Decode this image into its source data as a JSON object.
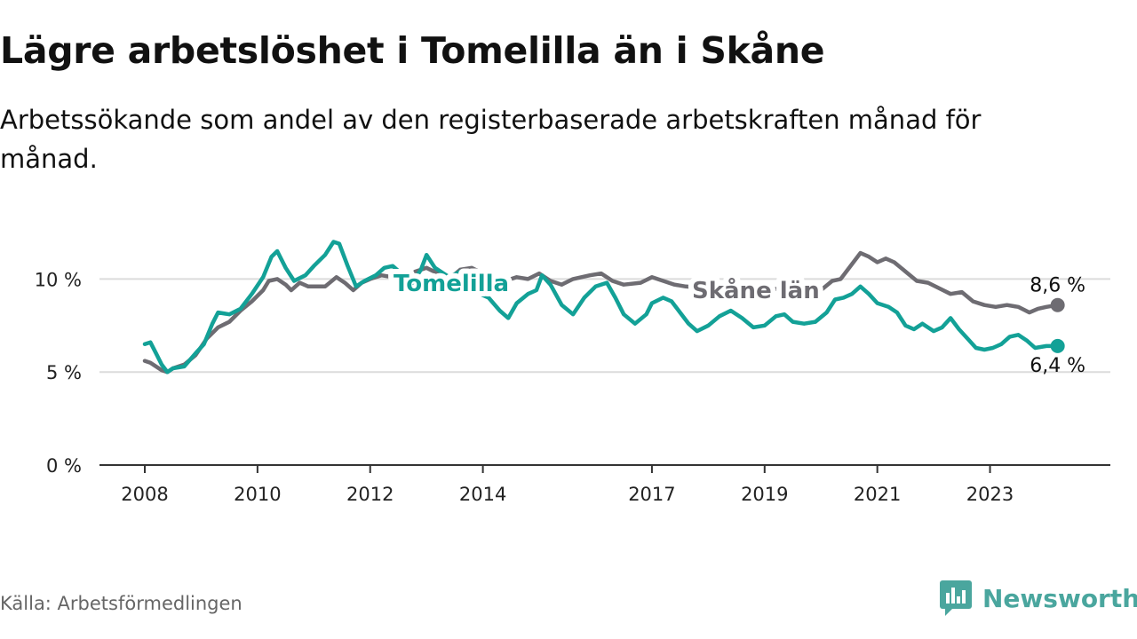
{
  "header": {
    "title": "Lägre arbetslöshet i Tomelilla än i Skåne",
    "subtitle": "Arbetssökande som andel av den registerbaserade arbetskraften månad för månad."
  },
  "footer": {
    "source": "Källa: Arbetsförmedlingen",
    "brand": "Newsworthy",
    "brand_color": "#4aa69e",
    "brand_icon": "bar-chart-speech-bubble-icon"
  },
  "chart_data": {
    "type": "line",
    "title": "Lägre arbetslöshet i Tomelilla än i Skåne",
    "subtitle": "Arbetssökande som andel av den registerbaserade arbetskraften månad för månad.",
    "xlabel": "",
    "ylabel": "",
    "xlim": [
      2008.0,
      2024.3
    ],
    "ylim": [
      0,
      12.5
    ],
    "grid": true,
    "x_ticks": [
      {
        "value": 2008,
        "label": "2008"
      },
      {
        "value": 2010,
        "label": "2010"
      },
      {
        "value": 2012,
        "label": "2012"
      },
      {
        "value": 2014,
        "label": "2014"
      },
      {
        "value": 2017,
        "label": "2017"
      },
      {
        "value": 2019,
        "label": "2019"
      },
      {
        "value": 2021,
        "label": "2021"
      },
      {
        "value": 2023,
        "label": "2023"
      }
    ],
    "y_ticks": [
      {
        "value": 0,
        "label": "0 %"
      },
      {
        "value": 5,
        "label": "5 %"
      },
      {
        "value": 10,
        "label": "10 %"
      }
    ],
    "series": [
      {
        "name": "Skåne län",
        "color": "#6e6c72",
        "end_label": "8,6 %",
        "points": [
          [
            2008.0,
            5.6
          ],
          [
            2008.1,
            5.5
          ],
          [
            2008.3,
            5.1
          ],
          [
            2008.4,
            5.0
          ],
          [
            2008.5,
            5.2
          ],
          [
            2008.7,
            5.4
          ],
          [
            2008.9,
            5.9
          ],
          [
            2009.1,
            6.8
          ],
          [
            2009.3,
            7.4
          ],
          [
            2009.5,
            7.7
          ],
          [
            2009.7,
            8.3
          ],
          [
            2009.9,
            8.8
          ],
          [
            2010.1,
            9.4
          ],
          [
            2010.2,
            9.9
          ],
          [
            2010.35,
            10.0
          ],
          [
            2010.5,
            9.7
          ],
          [
            2010.6,
            9.4
          ],
          [
            2010.75,
            9.8
          ],
          [
            2010.9,
            9.6
          ],
          [
            2011.2,
            9.6
          ],
          [
            2011.4,
            10.1
          ],
          [
            2011.55,
            9.8
          ],
          [
            2011.7,
            9.4
          ],
          [
            2011.85,
            9.8
          ],
          [
            2012.0,
            10.0
          ],
          [
            2012.2,
            10.2
          ],
          [
            2012.4,
            10.1
          ],
          [
            2012.6,
            9.9
          ],
          [
            2012.8,
            10.4
          ],
          [
            2013.0,
            10.6
          ],
          [
            2013.2,
            10.3
          ],
          [
            2013.4,
            10.0
          ],
          [
            2013.6,
            10.5
          ],
          [
            2013.8,
            10.6
          ],
          [
            2014.0,
            10.3
          ],
          [
            2014.2,
            9.9
          ],
          [
            2014.4,
            9.9
          ],
          [
            2014.6,
            10.1
          ],
          [
            2014.8,
            10.0
          ],
          [
            2015.0,
            10.3
          ],
          [
            2015.2,
            9.9
          ],
          [
            2015.4,
            9.7
          ],
          [
            2015.6,
            10.0
          ],
          [
            2015.9,
            10.2
          ],
          [
            2016.1,
            10.3
          ],
          [
            2016.3,
            9.9
          ],
          [
            2016.5,
            9.7
          ],
          [
            2016.8,
            9.8
          ],
          [
            2017.0,
            10.1
          ],
          [
            2017.2,
            9.9
          ],
          [
            2017.4,
            9.7
          ],
          [
            2017.6,
            9.6
          ],
          [
            2018.0,
            9.5
          ],
          [
            2018.3,
            9.6
          ],
          [
            2018.6,
            9.5
          ],
          [
            2019.0,
            9.4
          ],
          [
            2019.3,
            9.5
          ],
          [
            2019.6,
            9.3
          ],
          [
            2019.8,
            9.2
          ],
          [
            2020.0,
            9.4
          ],
          [
            2020.2,
            9.9
          ],
          [
            2020.35,
            10.0
          ],
          [
            2020.55,
            10.8
          ],
          [
            2020.7,
            11.4
          ],
          [
            2020.85,
            11.2
          ],
          [
            2021.0,
            10.9
          ],
          [
            2021.15,
            11.1
          ],
          [
            2021.3,
            10.9
          ],
          [
            2021.5,
            10.4
          ],
          [
            2021.7,
            9.9
          ],
          [
            2021.9,
            9.8
          ],
          [
            2022.1,
            9.5
          ],
          [
            2022.3,
            9.2
          ],
          [
            2022.5,
            9.3
          ],
          [
            2022.7,
            8.8
          ],
          [
            2022.9,
            8.6
          ],
          [
            2023.1,
            8.5
          ],
          [
            2023.3,
            8.6
          ],
          [
            2023.5,
            8.5
          ],
          [
            2023.7,
            8.2
          ],
          [
            2023.85,
            8.4
          ],
          [
            2024.0,
            8.5
          ],
          [
            2024.2,
            8.6
          ]
        ]
      },
      {
        "name": "Tomelilla",
        "color": "#13a197",
        "end_label": "6,4 %",
        "points": [
          [
            2008.0,
            6.5
          ],
          [
            2008.1,
            6.6
          ],
          [
            2008.2,
            6.0
          ],
          [
            2008.3,
            5.4
          ],
          [
            2008.4,
            5.0
          ],
          [
            2008.5,
            5.2
          ],
          [
            2008.7,
            5.3
          ],
          [
            2008.9,
            6.0
          ],
          [
            2009.05,
            6.5
          ],
          [
            2009.2,
            7.6
          ],
          [
            2009.3,
            8.2
          ],
          [
            2009.5,
            8.1
          ],
          [
            2009.7,
            8.4
          ],
          [
            2009.9,
            9.2
          ],
          [
            2010.1,
            10.1
          ],
          [
            2010.25,
            11.2
          ],
          [
            2010.35,
            11.5
          ],
          [
            2010.5,
            10.6
          ],
          [
            2010.65,
            9.9
          ],
          [
            2010.85,
            10.2
          ],
          [
            2011.0,
            10.7
          ],
          [
            2011.2,
            11.3
          ],
          [
            2011.35,
            12.0
          ],
          [
            2011.45,
            11.9
          ],
          [
            2011.6,
            10.7
          ],
          [
            2011.75,
            9.6
          ],
          [
            2011.9,
            9.9
          ],
          [
            2012.1,
            10.2
          ],
          [
            2012.25,
            10.6
          ],
          [
            2012.4,
            10.7
          ],
          [
            2012.55,
            10.3
          ],
          [
            2012.75,
            9.8
          ],
          [
            2012.9,
            10.5
          ],
          [
            2013.0,
            11.3
          ],
          [
            2013.15,
            10.6
          ],
          [
            2013.4,
            10.1
          ],
          [
            2013.6,
            10.4
          ],
          [
            2013.8,
            9.4
          ],
          [
            2014.1,
            9.0
          ],
          [
            2014.3,
            8.3
          ],
          [
            2014.45,
            7.9
          ],
          [
            2014.6,
            8.7
          ],
          [
            2014.8,
            9.2
          ],
          [
            2014.95,
            9.4
          ],
          [
            2015.05,
            10.2
          ],
          [
            2015.2,
            9.7
          ],
          [
            2015.4,
            8.6
          ],
          [
            2015.6,
            8.1
          ],
          [
            2015.8,
            9.0
          ],
          [
            2016.0,
            9.6
          ],
          [
            2016.2,
            9.8
          ],
          [
            2016.35,
            9.0
          ],
          [
            2016.5,
            8.1
          ],
          [
            2016.7,
            7.6
          ],
          [
            2016.9,
            8.1
          ],
          [
            2017.0,
            8.7
          ],
          [
            2017.2,
            9.0
          ],
          [
            2017.35,
            8.8
          ],
          [
            2017.5,
            8.2
          ],
          [
            2017.65,
            7.6
          ],
          [
            2017.8,
            7.2
          ],
          [
            2018.0,
            7.5
          ],
          [
            2018.2,
            8.0
          ],
          [
            2018.4,
            8.3
          ],
          [
            2018.6,
            7.9
          ],
          [
            2018.8,
            7.4
          ],
          [
            2019.0,
            7.5
          ],
          [
            2019.2,
            8.0
          ],
          [
            2019.35,
            8.1
          ],
          [
            2019.5,
            7.7
          ],
          [
            2019.7,
            7.6
          ],
          [
            2019.9,
            7.7
          ],
          [
            2020.1,
            8.2
          ],
          [
            2020.25,
            8.9
          ],
          [
            2020.4,
            9.0
          ],
          [
            2020.55,
            9.2
          ],
          [
            2020.7,
            9.6
          ],
          [
            2020.85,
            9.2
          ],
          [
            2021.0,
            8.7
          ],
          [
            2021.2,
            8.5
          ],
          [
            2021.35,
            8.2
          ],
          [
            2021.5,
            7.5
          ],
          [
            2021.65,
            7.3
          ],
          [
            2021.8,
            7.6
          ],
          [
            2022.0,
            7.2
          ],
          [
            2022.15,
            7.4
          ],
          [
            2022.3,
            7.9
          ],
          [
            2022.45,
            7.3
          ],
          [
            2022.6,
            6.8
          ],
          [
            2022.75,
            6.3
          ],
          [
            2022.9,
            6.2
          ],
          [
            2023.05,
            6.3
          ],
          [
            2023.2,
            6.5
          ],
          [
            2023.35,
            6.9
          ],
          [
            2023.5,
            7.0
          ],
          [
            2023.65,
            6.7
          ],
          [
            2023.8,
            6.3
          ],
          [
            2024.0,
            6.4
          ],
          [
            2024.2,
            6.4
          ]
        ]
      }
    ]
  }
}
